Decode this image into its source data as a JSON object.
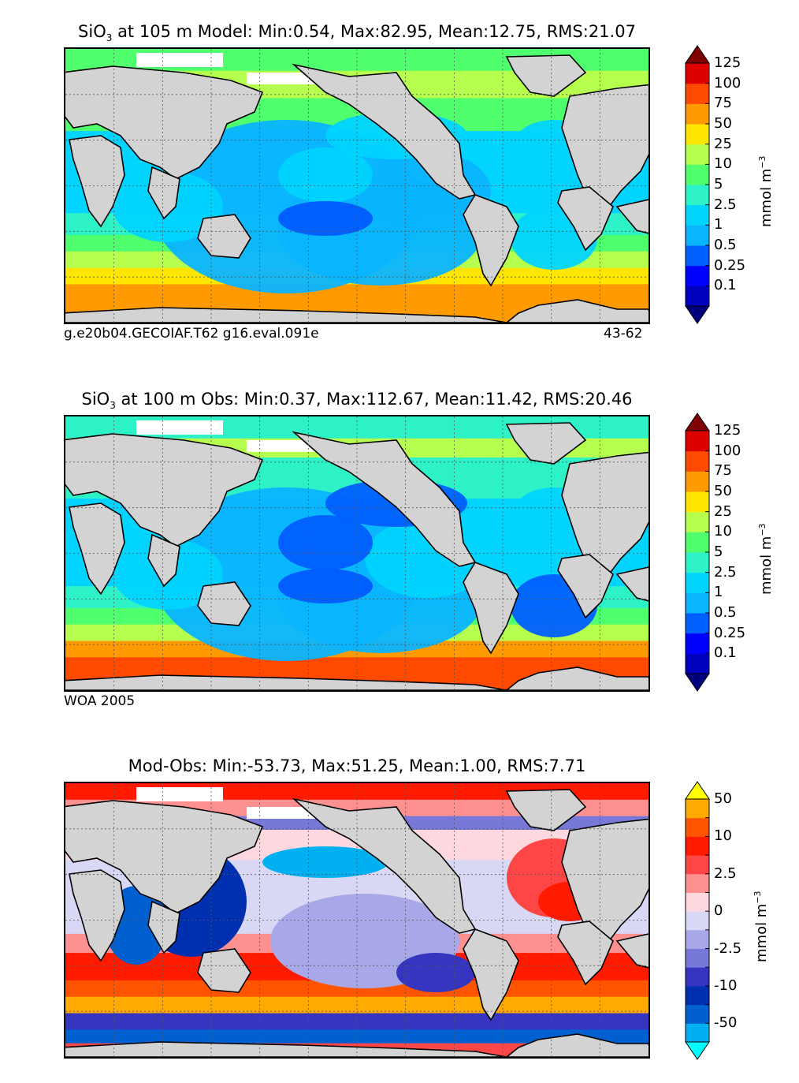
{
  "chart_data": [
    {
      "type": "heatmap",
      "title_prefix": "SiO",
      "title_sub": "3",
      "title_rest": " at 105 m Model: Min:0.54, Max:82.95, Mean:12.75, RMS:21.07",
      "stats": {
        "min": 0.54,
        "max": 82.95,
        "mean": 12.75,
        "rms": 21.07
      },
      "depth_label": "105 m",
      "caption_left": "g.e20b04.GECOIAF.T62 g16.eval.091e",
      "caption_right": "43-62",
      "colorbar": {
        "unit_base": "mmol m",
        "unit_exp": "−3",
        "levels": [
          "0.1",
          "0.25",
          "0.5",
          "1",
          "2.5",
          "5",
          "10",
          "25",
          "50",
          "75",
          "100",
          "125"
        ],
        "colors": [
          "#00007f",
          "#0000bf",
          "#0000ff",
          "#005fff",
          "#0ab4ff",
          "#00d4ff",
          "#2df2c8",
          "#4fff6e",
          "#b7ff4e",
          "#ffe600",
          "#ff9a00",
          "#ff4a00",
          "#df0000",
          "#7f0000"
        ]
      }
    },
    {
      "type": "heatmap",
      "title_prefix": "SiO",
      "title_sub": "3",
      "title_rest": " at 100 m Obs: Min:0.37, Max:112.67, Mean:11.42, RMS:20.46",
      "stats": {
        "min": 0.37,
        "max": 112.67,
        "mean": 11.42,
        "rms": 20.46
      },
      "depth_label": "100 m",
      "caption_left": "WOA 2005",
      "caption_right": "",
      "colorbar": {
        "unit_base": "mmol m",
        "unit_exp": "−3",
        "levels": [
          "0.1",
          "0.25",
          "0.5",
          "1",
          "2.5",
          "5",
          "10",
          "25",
          "50",
          "75",
          "100",
          "125"
        ],
        "colors": [
          "#00007f",
          "#0000bf",
          "#0000ff",
          "#005fff",
          "#0ab4ff",
          "#00d4ff",
          "#2df2c8",
          "#4fff6e",
          "#b7ff4e",
          "#ffe600",
          "#ff9a00",
          "#ff4a00",
          "#df0000",
          "#7f0000"
        ]
      }
    },
    {
      "type": "heatmap",
      "title_prefix": "",
      "title_sub": "",
      "title_rest": "Mod-Obs: Min:-53.73, Max:51.25, Mean:1.00, RMS:7.71",
      "stats": {
        "min": -53.73,
        "max": 51.25,
        "mean": 1.0,
        "rms": 7.71
      },
      "caption_left": "",
      "caption_right": "",
      "colorbar": {
        "unit_base": "mmol m",
        "unit_exp": "−3",
        "levels": [
          "-50",
          "",
          "-10",
          "",
          "-2.5",
          "",
          "0",
          "",
          "2.5",
          "",
          "10",
          "",
          "50"
        ],
        "colors": [
          "#00ffff",
          "#00b0f0",
          "#0060d0",
          "#0030b0",
          "#3535c0",
          "#7878d8",
          "#a8a8e8",
          "#d8d8f5",
          "#ffd8df",
          "#ff9090",
          "#ff4646",
          "#ff1a00",
          "#ff5500",
          "#ffaa00",
          "#ffff00"
        ]
      }
    }
  ]
}
